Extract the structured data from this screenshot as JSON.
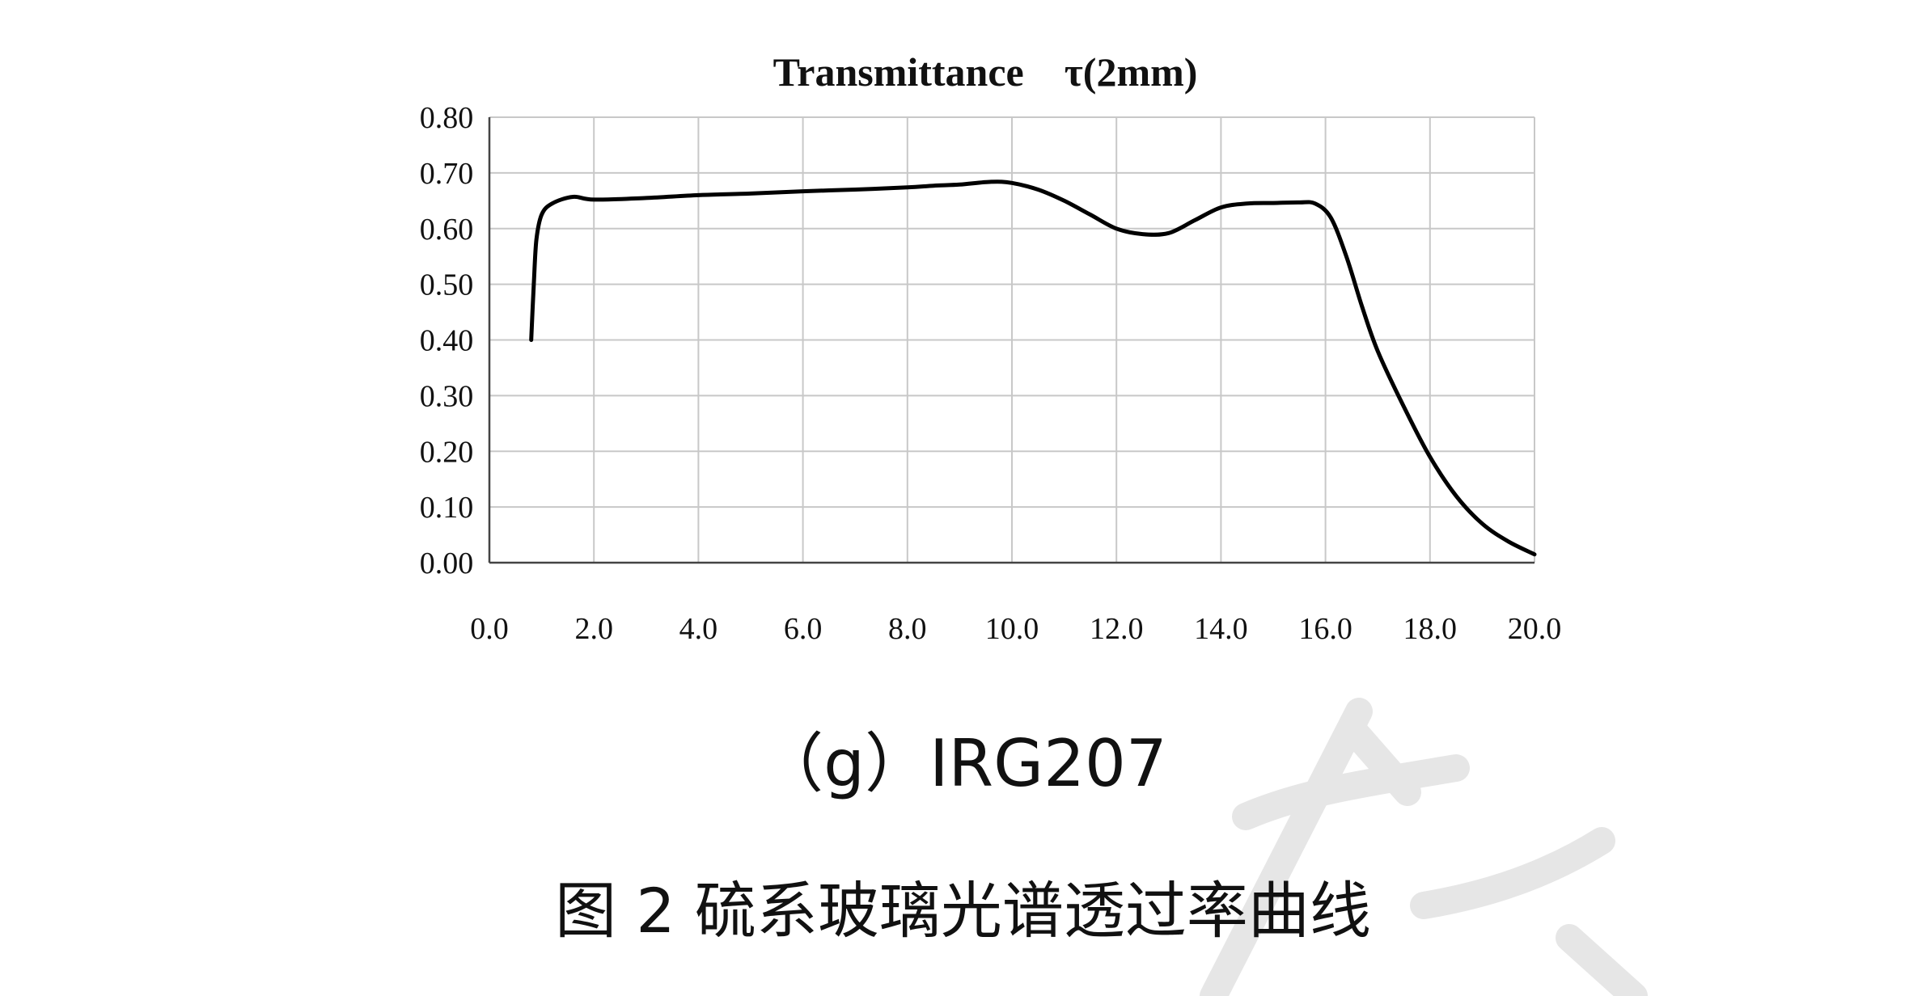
{
  "chart_data": {
    "type": "line",
    "title": "Transmittance    τ(2mm)",
    "xlabel": "",
    "ylabel": "",
    "xlim": [
      0,
      20
    ],
    "ylim": [
      0,
      0.8
    ],
    "x_ticks": [
      "0.0",
      "2.0",
      "4.0",
      "6.0",
      "8.0",
      "10.0",
      "12.0",
      "14.0",
      "16.0",
      "18.0",
      "20.0"
    ],
    "y_ticks": [
      "0.00",
      "0.10",
      "0.20",
      "0.30",
      "0.40",
      "0.50",
      "0.60",
      "0.70",
      "0.80"
    ],
    "grid": true,
    "series": [
      {
        "name": "",
        "color": "#000000",
        "x": [
          0.8,
          0.85,
          0.9,
          1.0,
          1.2,
          1.6,
          2.0,
          3.0,
          4.0,
          5.0,
          6.0,
          7.0,
          8.0,
          8.5,
          9.0,
          9.6,
          10.0,
          10.5,
          11.0,
          11.5,
          12.0,
          12.5,
          13.0,
          13.5,
          14.0,
          14.5,
          15.0,
          15.5,
          15.8,
          16.1,
          16.4,
          16.7,
          17.0,
          17.5,
          18.0,
          18.5,
          19.0,
          19.5,
          20.0
        ],
        "y": [
          0.4,
          0.5,
          0.58,
          0.625,
          0.645,
          0.657,
          0.652,
          0.655,
          0.66,
          0.663,
          0.667,
          0.67,
          0.674,
          0.677,
          0.679,
          0.684,
          0.682,
          0.67,
          0.65,
          0.625,
          0.6,
          0.59,
          0.592,
          0.615,
          0.638,
          0.645,
          0.646,
          0.647,
          0.645,
          0.62,
          0.55,
          0.46,
          0.38,
          0.28,
          0.19,
          0.12,
          0.07,
          0.038,
          0.015
        ]
      }
    ]
  },
  "captions": {
    "sub": "（g）IRG207",
    "figure": "图 2  硫系玻璃光谱透过率曲线"
  },
  "colors": {
    "grid": "#c8c8c8",
    "axis": "#444444",
    "line": "#000000",
    "watermark": "#e6e6e6"
  }
}
